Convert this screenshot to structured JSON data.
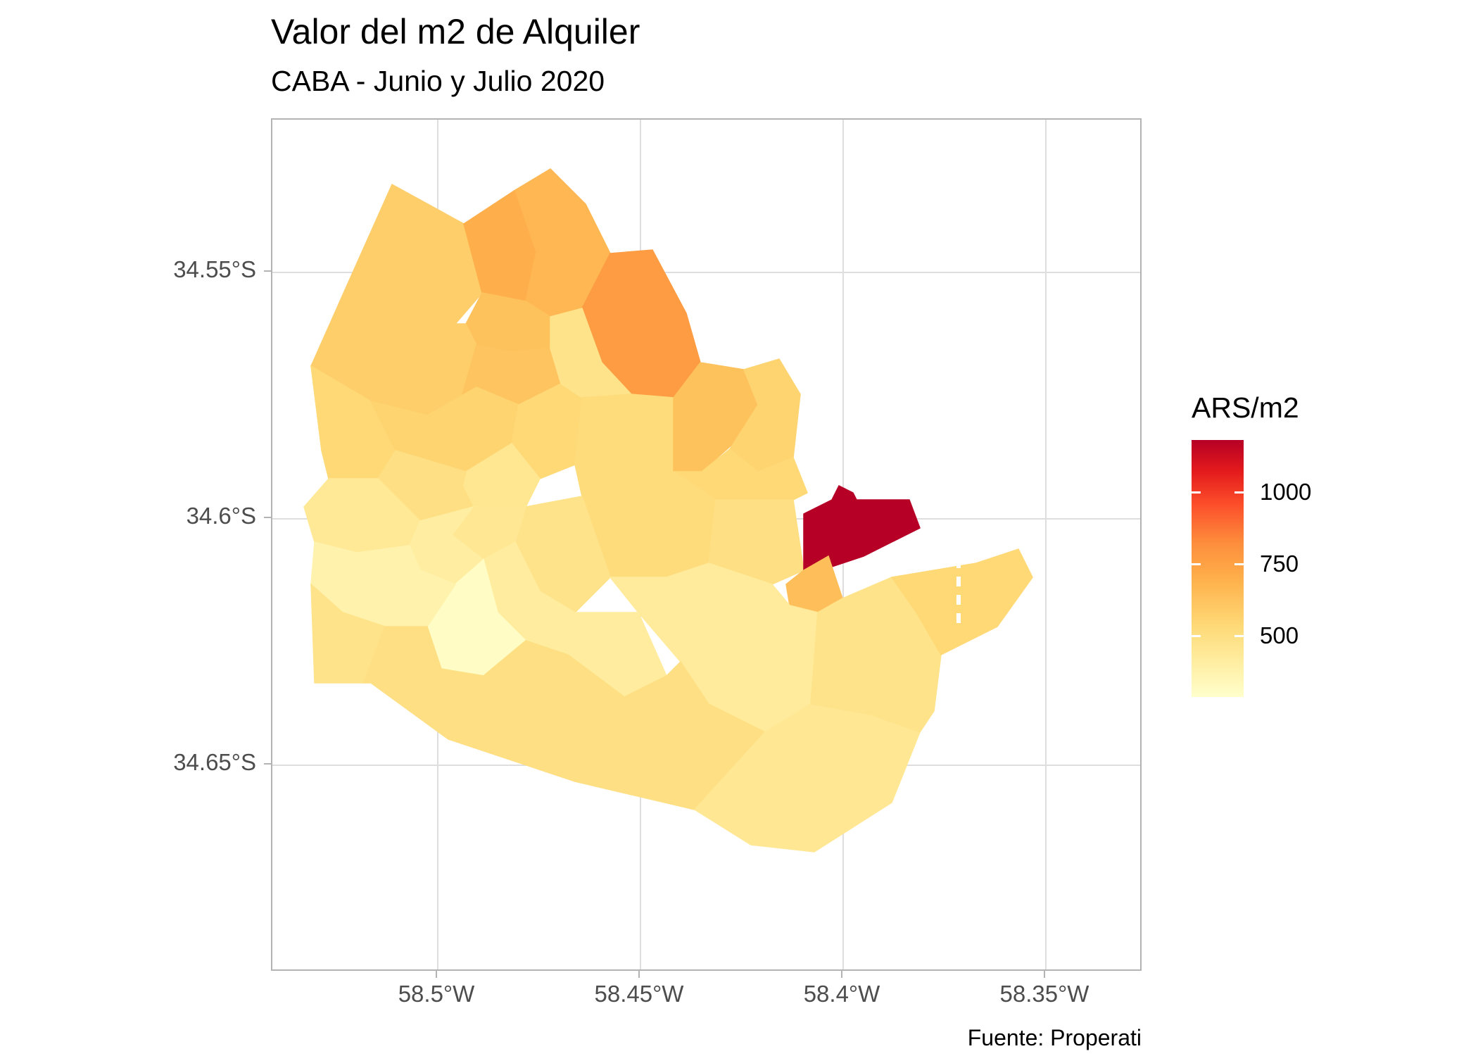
{
  "title": "Valor del m2 de Alquiler",
  "subtitle": "CABA - Junio y Julio 2020",
  "caption": "Fuente: Properati",
  "axes": {
    "x_ticks": [
      "58.5°W",
      "58.45°W",
      "58.4°W",
      "58.35°W"
    ],
    "y_ticks": [
      "34.55°S",
      "34.6°S",
      "34.65°S"
    ]
  },
  "legend": {
    "title": "ARS/m2",
    "labels": [
      "1000",
      "750",
      "500"
    ],
    "colors": [
      "#ffffcc",
      "#fed976",
      "#fd8d3c",
      "#e31a1c",
      "#b60026"
    ]
  },
  "chart_data": {
    "type": "heatmap",
    "x_range_deg_w": [
      58.54,
      58.325
    ],
    "y_range_deg_s": [
      34.517,
      34.693
    ],
    "value_range": [
      310,
      1200
    ],
    "regions": [
      {
        "value": 600
      },
      {
        "value": 720
      },
      {
        "value": 690
      },
      {
        "value": 790
      },
      {
        "value": 650
      },
      {
        "value": 600
      },
      {
        "value": 640
      },
      {
        "value": 560
      },
      {
        "value": 580
      },
      {
        "value": 560
      },
      {
        "value": 500
      },
      {
        "value": 540
      },
      {
        "value": 480
      },
      {
        "value": 520
      },
      {
        "value": 460
      },
      {
        "value": 650
      },
      {
        "value": 580
      },
      {
        "value": 560
      },
      {
        "value": 540
      },
      {
        "value": 520
      },
      {
        "value": 500
      },
      {
        "value": 470
      },
      {
        "value": 430
      },
      {
        "value": 1200
      },
      {
        "value": 660
      },
      {
        "value": 450
      },
      {
        "value": 440
      },
      {
        "value": 330
      },
      {
        "value": 400
      },
      {
        "value": 500
      },
      {
        "value": 520
      },
      {
        "value": 470
      },
      {
        "value": 500
      },
      {
        "value": 560
      }
    ]
  }
}
